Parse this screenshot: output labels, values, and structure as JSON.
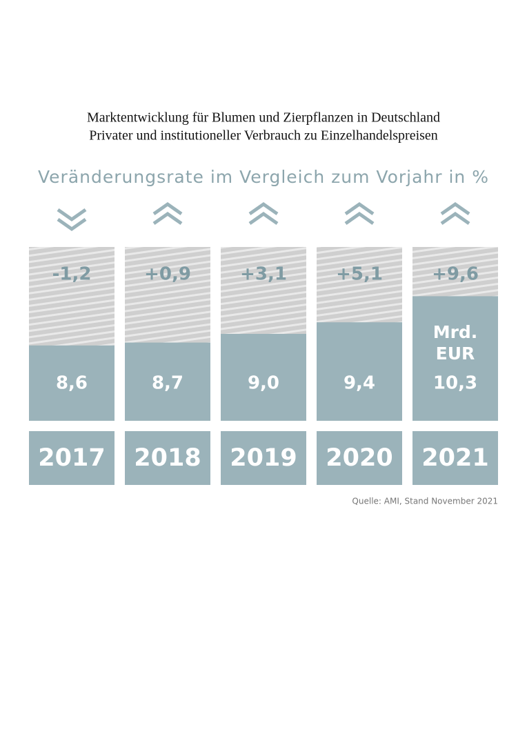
{
  "chart_data": {
    "type": "bar",
    "title": "Marktentwicklung für Blumen und Zierpflanzen in Deutschland",
    "subtitle": "Privater und institutioneller Verbrauch zu Einzelhandelspreisen",
    "change_label": "Veränderungsrate im Vergleich zum Vorjahr in %",
    "categories": [
      "2017",
      "2018",
      "2019",
      "2020",
      "2021"
    ],
    "values": [
      8.6,
      8.7,
      9.0,
      9.4,
      10.3
    ],
    "value_labels": [
      "8,6",
      "8,7",
      "9,0",
      "9,4",
      "10,3"
    ],
    "unit_label": "Mrd. EUR",
    "changes": [
      -1.2,
      0.9,
      3.1,
      5.1,
      9.6
    ],
    "change_labels": [
      "-1,2",
      "+0,9",
      "+3,1",
      "+5,1",
      "+9,6"
    ],
    "ylim": [
      6,
      12
    ],
    "color": "#9bb3ba",
    "change_color": "#d6d6d6",
    "source": "Quelle: AMI, Stand November 2021"
  }
}
